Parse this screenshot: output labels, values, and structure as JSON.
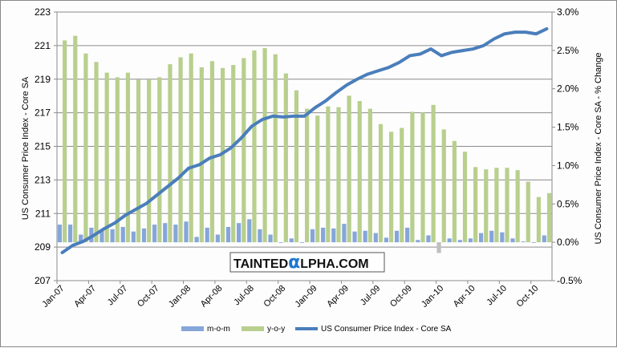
{
  "chart_data": {
    "type": "bar+line",
    "title": "",
    "categories": [
      "Jan-07",
      "Feb-07",
      "Mar-07",
      "Apr-07",
      "May-07",
      "Jun-07",
      "Jul-07",
      "Aug-07",
      "Sep-07",
      "Oct-07",
      "Nov-07",
      "Dec-07",
      "Jan-08",
      "Feb-08",
      "Mar-08",
      "Apr-08",
      "May-08",
      "Jun-08",
      "Jul-08",
      "Aug-08",
      "Sep-08",
      "Oct-08",
      "Nov-08",
      "Dec-08",
      "Jan-09",
      "Feb-09",
      "Mar-09",
      "Apr-09",
      "May-09",
      "Jun-09",
      "Jul-09",
      "Aug-09",
      "Sep-09",
      "Oct-09",
      "Nov-09",
      "Dec-09",
      "Jan-10",
      "Feb-10",
      "Mar-10",
      "Apr-10",
      "May-10",
      "Jun-10",
      "Jul-10",
      "Aug-10",
      "Sep-10",
      "Oct-10",
      "Nov-10"
    ],
    "x_tick_labels": [
      "Jan-07",
      "Apr-07",
      "Jul-07",
      "Oct-07",
      "Jan-08",
      "Apr-08",
      "Jul-08",
      "Oct-08",
      "Jan-09",
      "Apr-09",
      "Jul-09",
      "Oct-09",
      "Jan-10",
      "Apr-10",
      "Jul-10",
      "Oct-10"
    ],
    "ylabel_left": "US Consumer Price Index - Core SA",
    "ylabel_right": "US Consumer Price Index - Core SA - % Change",
    "ylim_left": [
      207,
      223
    ],
    "ylim_right": [
      -0.5,
      3.0
    ],
    "left_ticks": [
      "207",
      "209",
      "211",
      "213",
      "215",
      "217",
      "219",
      "221",
      "223"
    ],
    "right_ticks": [
      "-0.5%",
      "0.0%",
      "0.5%",
      "1.0%",
      "1.5%",
      "2.0%",
      "2.5%",
      "3.0%"
    ],
    "grid": true,
    "legend_position": "bottom",
    "series": [
      {
        "name": "m-o-m",
        "type": "bar",
        "axis": "right",
        "color": "#86a6da",
        "values": [
          0.23,
          0.23,
          0.1,
          0.19,
          0.16,
          0.17,
          0.2,
          0.14,
          0.18,
          0.23,
          0.25,
          0.23,
          0.27,
          0.07,
          0.19,
          0.1,
          0.2,
          0.25,
          0.3,
          0.17,
          0.1,
          0.0,
          0.05,
          0.0,
          0.17,
          0.19,
          0.18,
          0.24,
          0.14,
          0.15,
          0.12,
          0.06,
          0.15,
          0.19,
          0.03,
          0.09,
          -0.14,
          0.05,
          0.03,
          0.05,
          0.12,
          0.15,
          0.13,
          0.05,
          0.01,
          0.0,
          0.09
        ]
      },
      {
        "name": "y-o-y",
        "type": "bar",
        "axis": "right",
        "color": "#b8cf8e",
        "values": [
          2.63,
          2.69,
          2.46,
          2.35,
          2.21,
          2.15,
          2.21,
          2.12,
          2.12,
          2.15,
          2.32,
          2.41,
          2.46,
          2.28,
          2.36,
          2.27,
          2.31,
          2.4,
          2.5,
          2.53,
          2.45,
          2.2,
          1.98,
          1.74,
          1.65,
          1.77,
          1.76,
          1.91,
          1.84,
          1.74,
          1.54,
          1.44,
          1.49,
          1.7,
          1.69,
          1.79,
          1.47,
          1.32,
          1.18,
          0.98,
          0.95,
          0.97,
          0.97,
          0.94,
          0.79,
          0.59,
          0.64
        ]
      },
      {
        "name": "US Consumer Price Index - Core SA",
        "type": "line",
        "axis": "left",
        "color": "#4a7ebb",
        "values": [
          208.67,
          209.1,
          209.34,
          209.7,
          210.1,
          210.44,
          210.9,
          211.25,
          211.6,
          212.1,
          212.6,
          213.1,
          213.7,
          213.9,
          214.3,
          214.5,
          214.9,
          215.5,
          216.2,
          216.6,
          216.8,
          216.75,
          216.8,
          216.8,
          217.3,
          217.7,
          218.2,
          218.65,
          219.0,
          219.3,
          219.5,
          219.7,
          220.0,
          220.4,
          220.5,
          220.8,
          220.4,
          220.6,
          220.7,
          220.8,
          221.0,
          221.4,
          221.7,
          221.8,
          221.8,
          221.7,
          222.0
        ]
      }
    ],
    "negative_bar_color": "#bfbfbf",
    "watermark": {
      "prefix": "TAINTED",
      "alpha": "α",
      "suffix": "LPHA.COM"
    }
  }
}
